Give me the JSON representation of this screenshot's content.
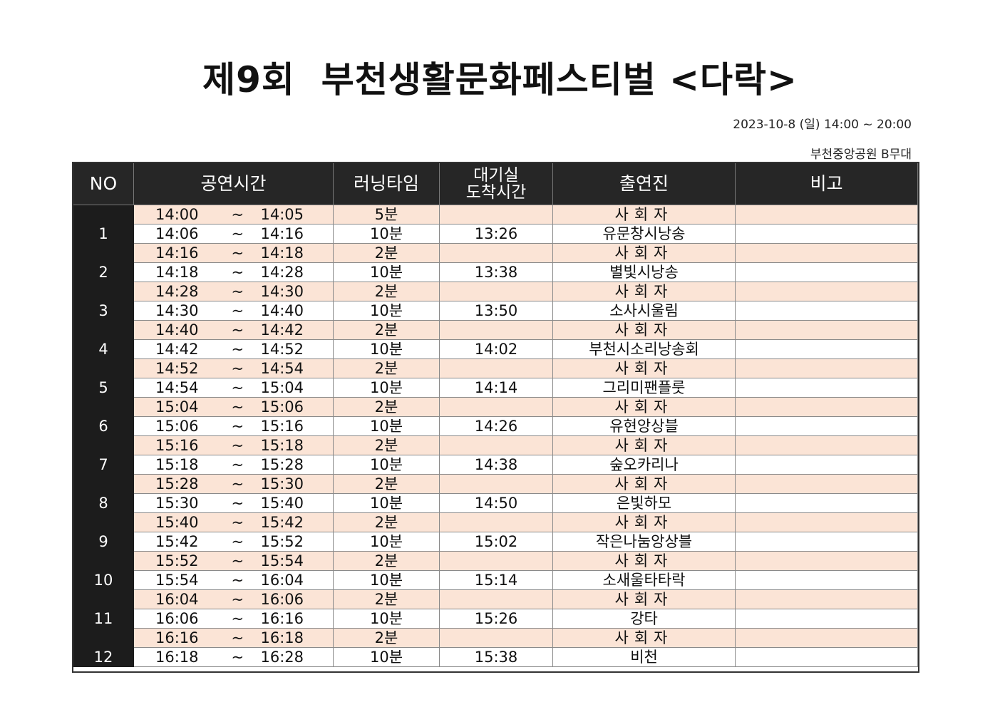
{
  "title": "제9회  부천생활문화페스티벌 <다락>",
  "date_line": "2023-10-8 (일) 14:00 ~ 20:00",
  "venue_line": "부천중앙공원 B무대",
  "headers": {
    "no": "NO",
    "time": "공연시간",
    "running": "러닝타임",
    "arrival_line1": "대기실",
    "arrival_line2": "도착시간",
    "performer": "출연진",
    "note": "비고"
  },
  "rows": [
    {
      "no": "",
      "start": "14:00",
      "tilde": "~",
      "end": "14:05",
      "run": "5분",
      "arrive": "",
      "performer": "사회자",
      "note": "",
      "type": "host"
    },
    {
      "no": "1",
      "start": "14:06",
      "tilde": "~",
      "end": "14:16",
      "run": "10분",
      "arrive": "13:26",
      "performer": "유문창시낭송",
      "note": "",
      "type": "act"
    },
    {
      "no": "",
      "start": "14:16",
      "tilde": "~",
      "end": "14:18",
      "run": "2분",
      "arrive": "",
      "performer": "사회자",
      "note": "",
      "type": "host"
    },
    {
      "no": "2",
      "start": "14:18",
      "tilde": "~",
      "end": "14:28",
      "run": "10분",
      "arrive": "13:38",
      "performer": "별빛시낭송",
      "note": "",
      "type": "act"
    },
    {
      "no": "",
      "start": "14:28",
      "tilde": "~",
      "end": "14:30",
      "run": "2분",
      "arrive": "",
      "performer": "사회자",
      "note": "",
      "type": "host"
    },
    {
      "no": "3",
      "start": "14:30",
      "tilde": "~",
      "end": "14:40",
      "run": "10분",
      "arrive": "13:50",
      "performer": "소사시울림",
      "note": "",
      "type": "act"
    },
    {
      "no": "",
      "start": "14:40",
      "tilde": "~",
      "end": "14:42",
      "run": "2분",
      "arrive": "",
      "performer": "사회자",
      "note": "",
      "type": "host"
    },
    {
      "no": "4",
      "start": "14:42",
      "tilde": "~",
      "end": "14:52",
      "run": "10분",
      "arrive": "14:02",
      "performer": "부천시소리낭송회",
      "note": "",
      "type": "act"
    },
    {
      "no": "",
      "start": "14:52",
      "tilde": "~",
      "end": "14:54",
      "run": "2분",
      "arrive": "",
      "performer": "사회자",
      "note": "",
      "type": "host"
    },
    {
      "no": "5",
      "start": "14:54",
      "tilde": "~",
      "end": "15:04",
      "run": "10분",
      "arrive": "14:14",
      "performer": "그리미팬플룻",
      "note": "",
      "type": "act"
    },
    {
      "no": "",
      "start": "15:04",
      "tilde": "~",
      "end": "15:06",
      "run": "2분",
      "arrive": "",
      "performer": "사회자",
      "note": "",
      "type": "host"
    },
    {
      "no": "6",
      "start": "15:06",
      "tilde": "~",
      "end": "15:16",
      "run": "10분",
      "arrive": "14:26",
      "performer": "유현앙상블",
      "note": "",
      "type": "act"
    },
    {
      "no": "",
      "start": "15:16",
      "tilde": "~",
      "end": "15:18",
      "run": "2분",
      "arrive": "",
      "performer": "사회자",
      "note": "",
      "type": "host"
    },
    {
      "no": "7",
      "start": "15:18",
      "tilde": "~",
      "end": "15:28",
      "run": "10분",
      "arrive": "14:38",
      "performer": "숲오카리나",
      "note": "",
      "type": "act"
    },
    {
      "no": "",
      "start": "15:28",
      "tilde": "~",
      "end": "15:30",
      "run": "2분",
      "arrive": "",
      "performer": "사회자",
      "note": "",
      "type": "host"
    },
    {
      "no": "8",
      "start": "15:30",
      "tilde": "~",
      "end": "15:40",
      "run": "10분",
      "arrive": "14:50",
      "performer": "은빛하모",
      "note": "",
      "type": "act"
    },
    {
      "no": "",
      "start": "15:40",
      "tilde": "~",
      "end": "15:42",
      "run": "2분",
      "arrive": "",
      "performer": "사회자",
      "note": "",
      "type": "host"
    },
    {
      "no": "9",
      "start": "15:42",
      "tilde": "~",
      "end": "15:52",
      "run": "10분",
      "arrive": "15:02",
      "performer": "작은나눔앙상블",
      "note": "",
      "type": "act"
    },
    {
      "no": "",
      "start": "15:52",
      "tilde": "~",
      "end": "15:54",
      "run": "2분",
      "arrive": "",
      "performer": "사회자",
      "note": "",
      "type": "host"
    },
    {
      "no": "10",
      "start": "15:54",
      "tilde": "~",
      "end": "16:04",
      "run": "10분",
      "arrive": "15:14",
      "performer": "소새울타타락",
      "note": "",
      "type": "act"
    },
    {
      "no": "",
      "start": "16:04",
      "tilde": "~",
      "end": "16:06",
      "run": "2분",
      "arrive": "",
      "performer": "사회자",
      "note": "",
      "type": "host"
    },
    {
      "no": "11",
      "start": "16:06",
      "tilde": "~",
      "end": "16:16",
      "run": "10분",
      "arrive": "15:26",
      "performer": "강타",
      "note": "",
      "type": "act"
    },
    {
      "no": "",
      "start": "16:16",
      "tilde": "~",
      "end": "16:18",
      "run": "2분",
      "arrive": "",
      "performer": "사회자",
      "note": "",
      "type": "host"
    },
    {
      "no": "12",
      "start": "16:18",
      "tilde": "~",
      "end": "16:28",
      "run": "10분",
      "arrive": "15:38",
      "performer": "비천",
      "note": "",
      "type": "act"
    }
  ]
}
